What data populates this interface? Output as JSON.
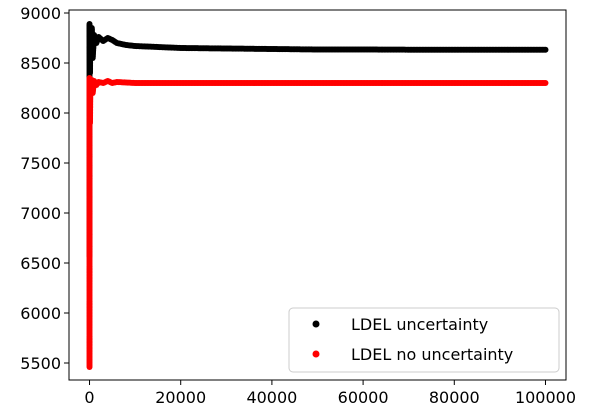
{
  "chart_data": {
    "type": "scatter",
    "title": "",
    "xlabel": "",
    "ylabel": "",
    "xlim": [
      -4500,
      104500
    ],
    "ylim": [
      5330,
      9030
    ],
    "x_ticks": [
      0,
      20000,
      40000,
      60000,
      80000,
      100000
    ],
    "x_tick_labels": [
      "0",
      "20000",
      "40000",
      "60000",
      "80000",
      "100000"
    ],
    "y_ticks": [
      5500,
      6000,
      6500,
      7000,
      7500,
      8000,
      8500,
      9000
    ],
    "y_tick_labels": [
      "5500",
      "6000",
      "6500",
      "7000",
      "7500",
      "8000",
      "8500",
      "9000"
    ],
    "grid": false,
    "legend_position": "lower-right",
    "series": [
      {
        "name": "LDEL uncertainty",
        "color": "#000000",
        "points": [
          [
            0,
            6570
          ],
          [
            0,
            6820
          ],
          [
            0,
            7120
          ],
          [
            0,
            7300
          ],
          [
            0,
            7600
          ],
          [
            0,
            7900
          ],
          [
            0,
            8200
          ],
          [
            0,
            8500
          ],
          [
            0,
            8700
          ],
          [
            0,
            8890
          ],
          [
            100,
            8400
          ],
          [
            200,
            8800
          ],
          [
            300,
            8600
          ],
          [
            500,
            8850
          ],
          [
            700,
            8550
          ],
          [
            1000,
            8780
          ],
          [
            1500,
            8700
          ],
          [
            2000,
            8760
          ],
          [
            3000,
            8720
          ],
          [
            4000,
            8750
          ],
          [
            5000,
            8730
          ],
          [
            6000,
            8700
          ],
          [
            8000,
            8680
          ],
          [
            10000,
            8670
          ],
          [
            15000,
            8660
          ],
          [
            20000,
            8650
          ],
          [
            30000,
            8645
          ],
          [
            40000,
            8640
          ],
          [
            50000,
            8635
          ],
          [
            60000,
            8635
          ],
          [
            70000,
            8633
          ],
          [
            80000,
            8632
          ],
          [
            90000,
            8632
          ],
          [
            100000,
            8632
          ]
        ]
      },
      {
        "name": "LDEL no uncertainty",
        "color": "#ff0000",
        "points": [
          [
            0,
            5460
          ],
          [
            0,
            6160
          ],
          [
            0,
            6890
          ],
          [
            0,
            7200
          ],
          [
            0,
            7250
          ],
          [
            0,
            7500
          ],
          [
            0,
            7800
          ],
          [
            0,
            8000
          ],
          [
            0,
            8200
          ],
          [
            0,
            8350
          ],
          [
            100,
            7900
          ],
          [
            200,
            8300
          ],
          [
            300,
            8250
          ],
          [
            500,
            8330
          ],
          [
            700,
            8200
          ],
          [
            1000,
            8320
          ],
          [
            1500,
            8280
          ],
          [
            2000,
            8310
          ],
          [
            3000,
            8300
          ],
          [
            4000,
            8320
          ],
          [
            5000,
            8300
          ],
          [
            6000,
            8310
          ],
          [
            8000,
            8305
          ],
          [
            10000,
            8300
          ],
          [
            15000,
            8300
          ],
          [
            20000,
            8300
          ],
          [
            30000,
            8300
          ],
          [
            40000,
            8300
          ],
          [
            50000,
            8300
          ],
          [
            60000,
            8300
          ],
          [
            70000,
            8300
          ],
          [
            80000,
            8300
          ],
          [
            90000,
            8300
          ],
          [
            100000,
            8300
          ]
        ]
      }
    ]
  }
}
